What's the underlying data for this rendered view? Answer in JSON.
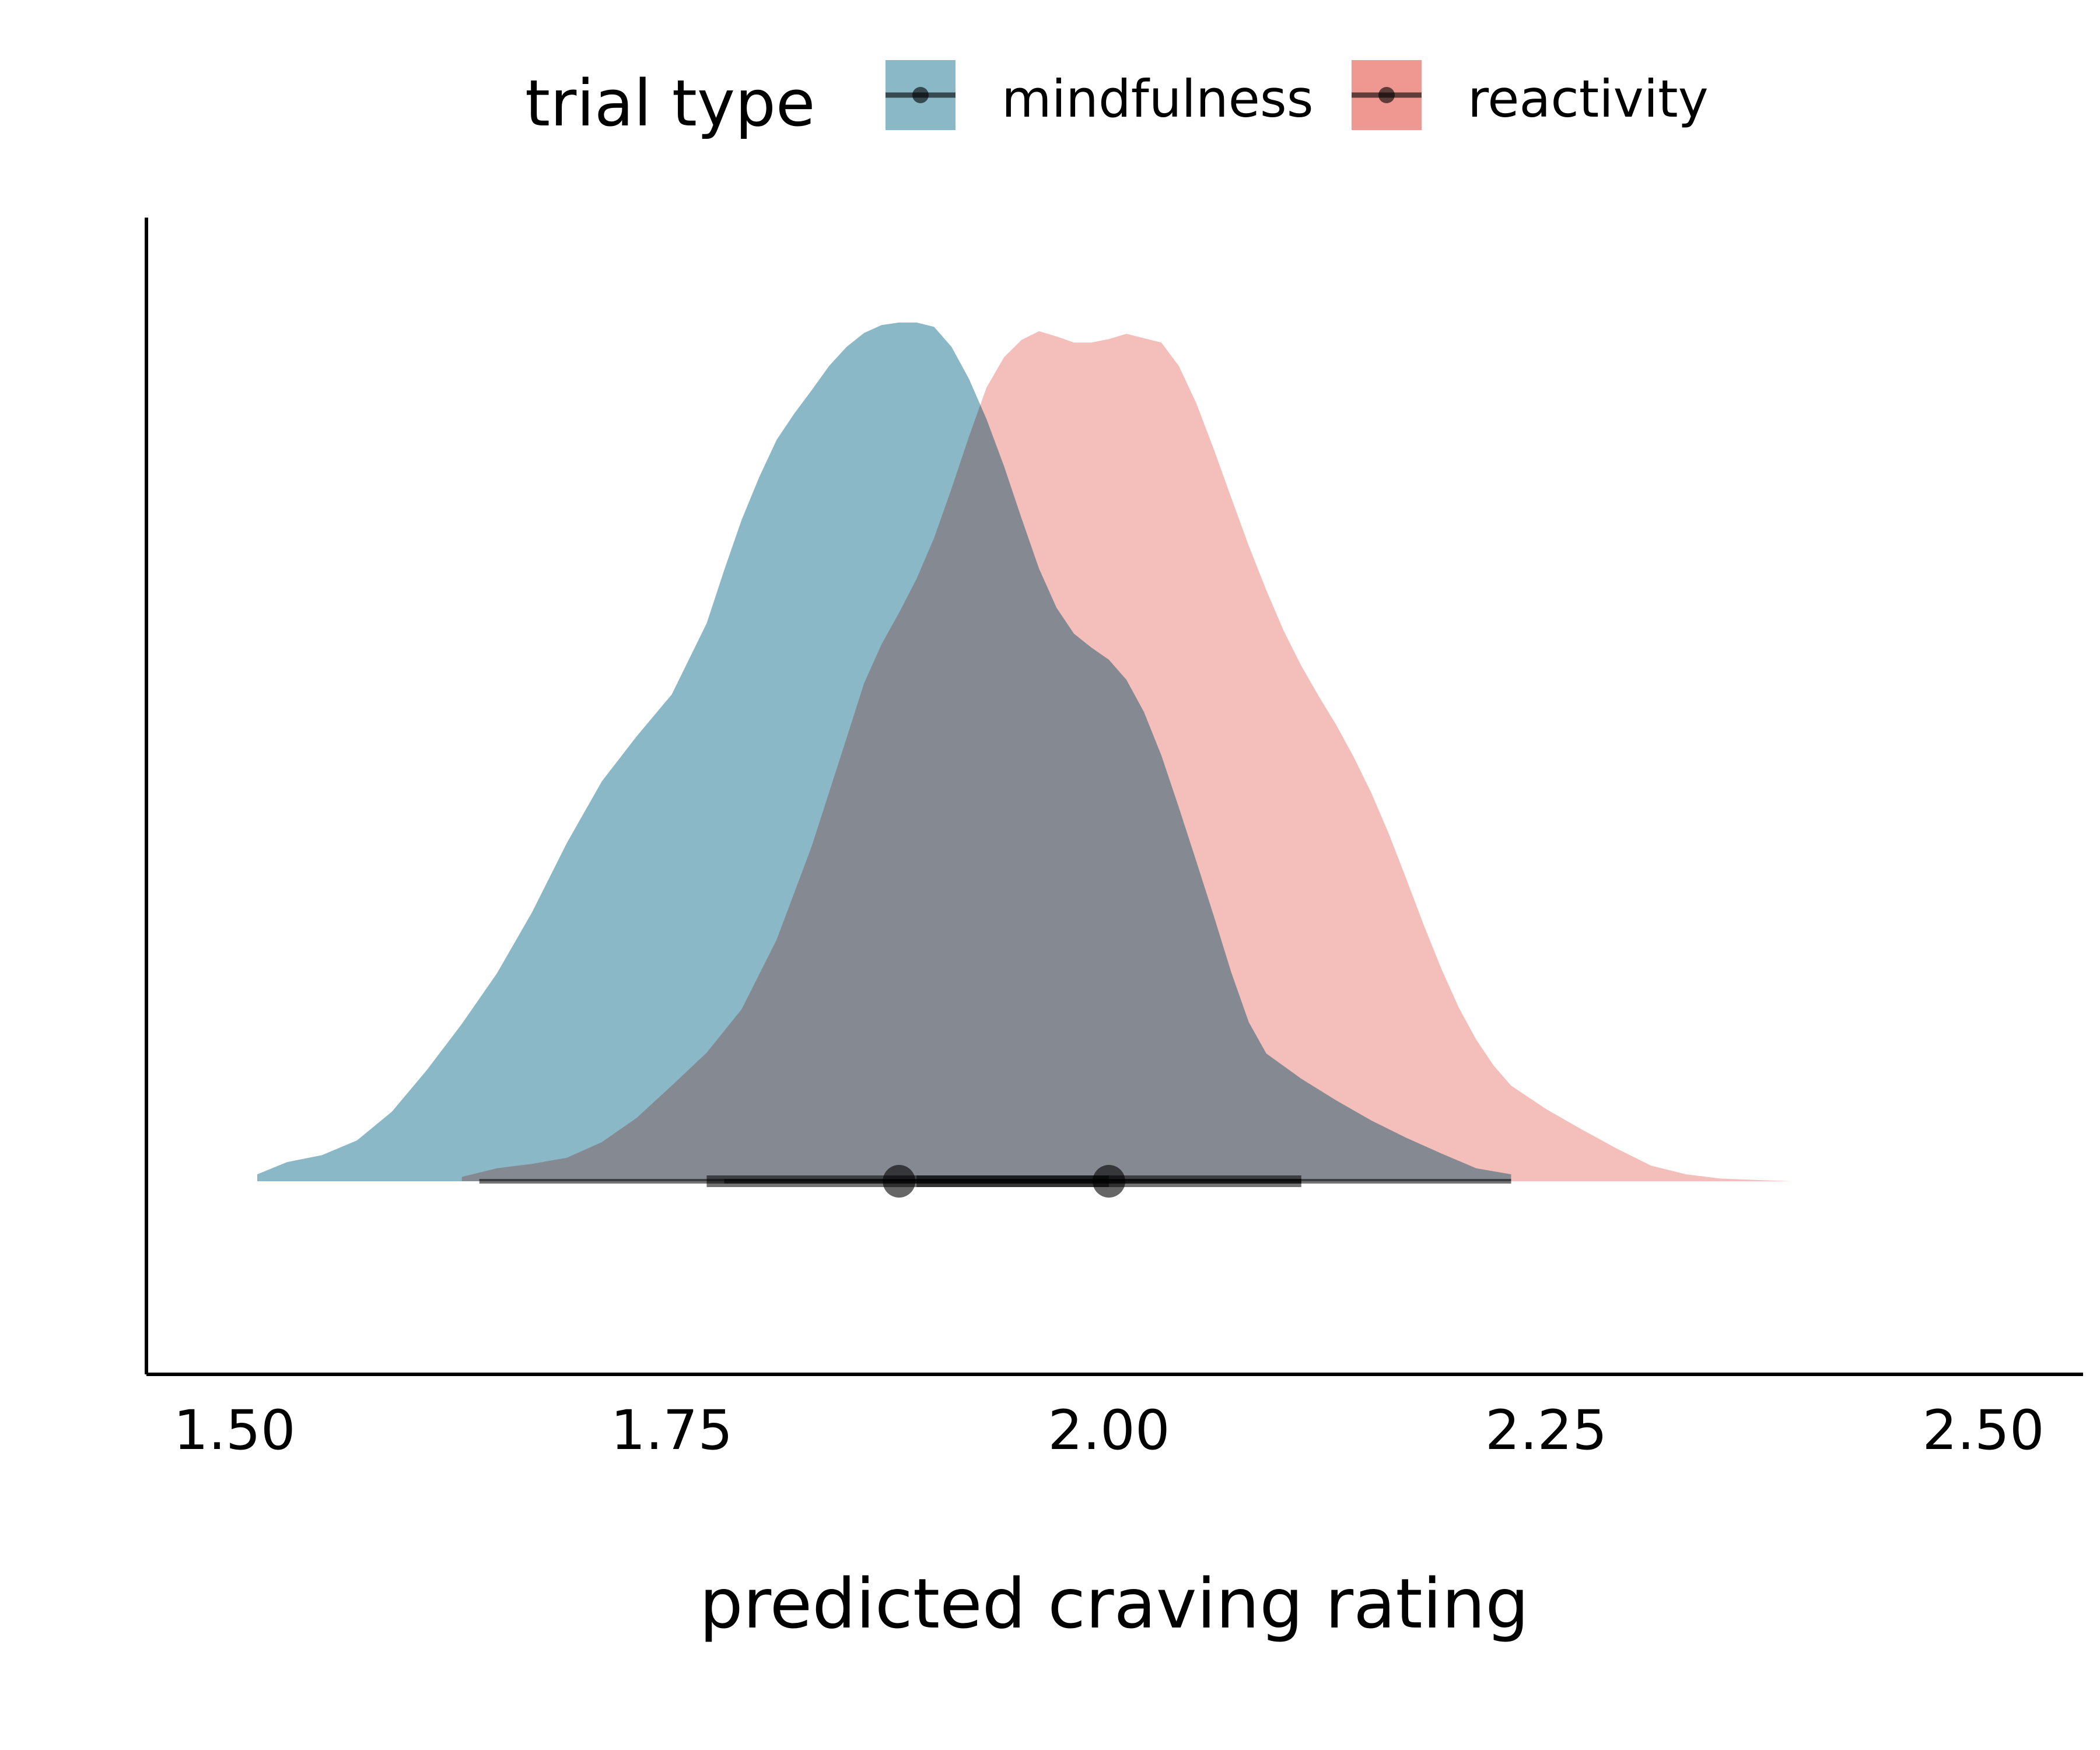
{
  "chart_data": {
    "type": "density",
    "title": "",
    "xlabel": "predicted craving rating",
    "ylabel": "",
    "xlim": [
      1.5,
      2.5
    ],
    "x_ticks": [
      1.5,
      1.75,
      2.0,
      2.25,
      2.5
    ],
    "x_tick_labels": [
      "1.50",
      "1.75",
      "2.00",
      "2.25",
      "2.50"
    ],
    "grid": false,
    "legend": {
      "title": "trial type",
      "position": "top",
      "entries": [
        "mindfulness",
        "reactivity"
      ]
    },
    "series": [
      {
        "name": "mindfulness",
        "color": "#8BB8C7",
        "density": [
          [
            1.513,
            0.008
          ],
          [
            1.53,
            0.022
          ],
          [
            1.55,
            0.03
          ],
          [
            1.57,
            0.047
          ],
          [
            1.59,
            0.08
          ],
          [
            1.61,
            0.128
          ],
          [
            1.63,
            0.181
          ],
          [
            1.65,
            0.239
          ],
          [
            1.67,
            0.309
          ],
          [
            1.69,
            0.389
          ],
          [
            1.71,
            0.46
          ],
          [
            1.73,
            0.512
          ],
          [
            1.75,
            0.56
          ],
          [
            1.77,
            0.642
          ],
          [
            1.78,
            0.703
          ],
          [
            1.79,
            0.761
          ],
          [
            1.8,
            0.81
          ],
          [
            1.81,
            0.853
          ],
          [
            1.82,
            0.883
          ],
          [
            1.83,
            0.91
          ],
          [
            1.84,
            0.938
          ],
          [
            1.85,
            0.96
          ],
          [
            1.86,
            0.976
          ],
          [
            1.87,
            0.985
          ],
          [
            1.88,
            0.988
          ],
          [
            1.89,
            0.988
          ],
          [
            1.9,
            0.983
          ],
          [
            1.91,
            0.96
          ],
          [
            1.92,
            0.923
          ],
          [
            1.93,
            0.877
          ],
          [
            1.94,
            0.823
          ],
          [
            1.95,
            0.763
          ],
          [
            1.96,
            0.705
          ],
          [
            1.97,
            0.66
          ],
          [
            1.98,
            0.63
          ],
          [
            1.99,
            0.614
          ],
          [
            2.0,
            0.6
          ],
          [
            2.01,
            0.577
          ],
          [
            2.02,
            0.54
          ],
          [
            2.03,
            0.49
          ],
          [
            2.04,
            0.43
          ],
          [
            2.05,
            0.368
          ],
          [
            2.06,
            0.305
          ],
          [
            2.07,
            0.24
          ],
          [
            2.08,
            0.183
          ],
          [
            2.09,
            0.147
          ],
          [
            2.11,
            0.118
          ],
          [
            2.13,
            0.093
          ],
          [
            2.15,
            0.07
          ],
          [
            2.17,
            0.05
          ],
          [
            2.19,
            0.032
          ],
          [
            2.21,
            0.015
          ],
          [
            2.23,
            0.008
          ]
        ],
        "point": 1.88,
        "interval_66": [
          1.77,
          2.0
        ],
        "interval_95": [
          1.64,
          2.11
        ]
      },
      {
        "name": "reactivity",
        "color": "#EE9891",
        "density": [
          [
            1.63,
            0.005
          ],
          [
            1.65,
            0.015
          ],
          [
            1.67,
            0.02
          ],
          [
            1.69,
            0.027
          ],
          [
            1.71,
            0.045
          ],
          [
            1.73,
            0.073
          ],
          [
            1.75,
            0.11
          ],
          [
            1.77,
            0.148
          ],
          [
            1.79,
            0.198
          ],
          [
            1.81,
            0.278
          ],
          [
            1.83,
            0.385
          ],
          [
            1.85,
            0.51
          ],
          [
            1.86,
            0.573
          ],
          [
            1.87,
            0.618
          ],
          [
            1.88,
            0.654
          ],
          [
            1.89,
            0.693
          ],
          [
            1.9,
            0.74
          ],
          [
            1.91,
            0.797
          ],
          [
            1.92,
            0.857
          ],
          [
            1.93,
            0.913
          ],
          [
            1.94,
            0.948
          ],
          [
            1.95,
            0.968
          ],
          [
            1.96,
            0.978
          ],
          [
            1.97,
            0.972
          ],
          [
            1.98,
            0.965
          ],
          [
            1.99,
            0.965
          ],
          [
            2.0,
            0.969
          ],
          [
            2.01,
            0.975
          ],
          [
            2.02,
            0.97
          ],
          [
            2.03,
            0.965
          ],
          [
            2.04,
            0.938
          ],
          [
            2.05,
            0.895
          ],
          [
            2.06,
            0.842
          ],
          [
            2.07,
            0.786
          ],
          [
            2.08,
            0.731
          ],
          [
            2.09,
            0.68
          ],
          [
            2.1,
            0.633
          ],
          [
            2.11,
            0.593
          ],
          [
            2.12,
            0.558
          ],
          [
            2.13,
            0.525
          ],
          [
            2.14,
            0.488
          ],
          [
            2.15,
            0.447
          ],
          [
            2.16,
            0.4
          ],
          [
            2.17,
            0.348
          ],
          [
            2.18,
            0.295
          ],
          [
            2.19,
            0.245
          ],
          [
            2.2,
            0.2
          ],
          [
            2.21,
            0.163
          ],
          [
            2.22,
            0.133
          ],
          [
            2.23,
            0.11
          ],
          [
            2.25,
            0.083
          ],
          [
            2.27,
            0.06
          ],
          [
            2.29,
            0.038
          ],
          [
            2.31,
            0.018
          ],
          [
            2.33,
            0.008
          ],
          [
            2.35,
            0.003
          ],
          [
            2.39,
            0.0
          ]
        ],
        "point": 2.0,
        "interval_66": [
          1.89,
          2.11
        ],
        "interval_95": [
          1.78,
          2.23
        ]
      }
    ]
  }
}
